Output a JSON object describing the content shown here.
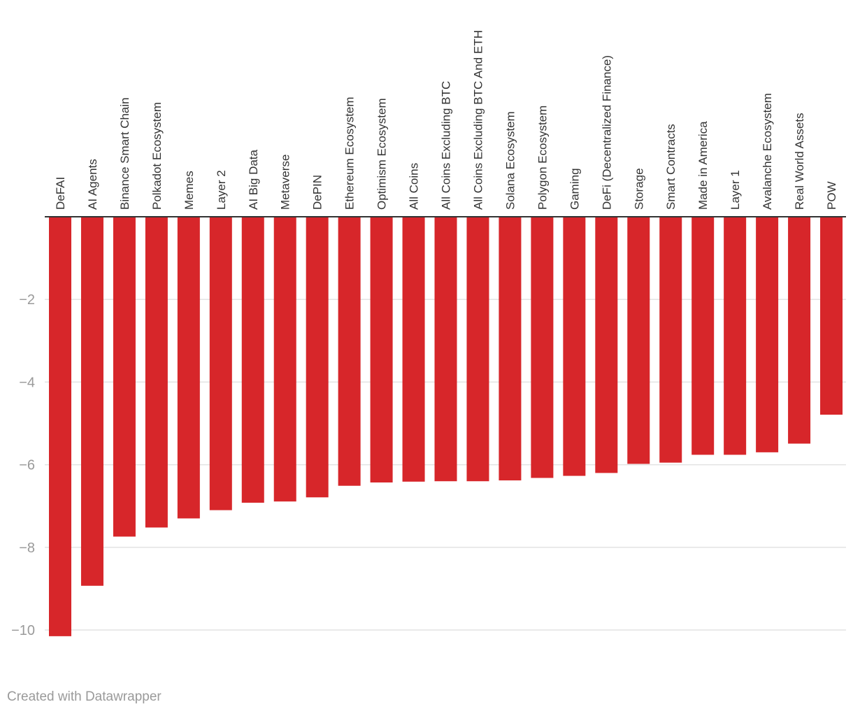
{
  "chart_data": {
    "type": "bar",
    "categories": [
      "DeFAI",
      "AI Agents",
      "Binance Smart Chain",
      "Polkadot Ecosystem",
      "Memes",
      "Layer 2",
      "AI Big Data",
      "Metaverse",
      "DePIN",
      "Ethereum Ecosystem",
      "Optimism Ecosystem",
      "All Coins",
      "All Coins Excluding BTC",
      "All Coins Excluding BTC And ETH",
      "Solana Ecosystem",
      "Polygon Ecosystem",
      "Gaming",
      "DeFi (Decentralized Finance)",
      "Storage",
      "Smart Contracts",
      "Made in America",
      "Layer 1",
      "Avalanche Ecosystem",
      "Real World Assets",
      "POW"
    ],
    "values": [
      -10.15,
      -8.93,
      -7.74,
      -7.52,
      -7.3,
      -7.1,
      -6.92,
      -6.89,
      -6.79,
      -6.51,
      -6.43,
      -6.41,
      -6.4,
      -6.4,
      -6.38,
      -6.32,
      -6.27,
      -6.2,
      -5.98,
      -5.95,
      -5.76,
      -5.76,
      -5.7,
      -5.49,
      -4.79
    ],
    "yticks": [
      -2,
      -4,
      -6,
      -8,
      -10
    ],
    "ytick_labels": [
      "−2",
      "−4",
      "−6",
      "−8",
      "−10"
    ],
    "ylim": [
      -10.2,
      0
    ],
    "bar_color": "#d7262a",
    "grid": true,
    "title": "",
    "xlabel": "",
    "ylabel": ""
  },
  "footer": {
    "credit": "Created with Datawrapper"
  }
}
